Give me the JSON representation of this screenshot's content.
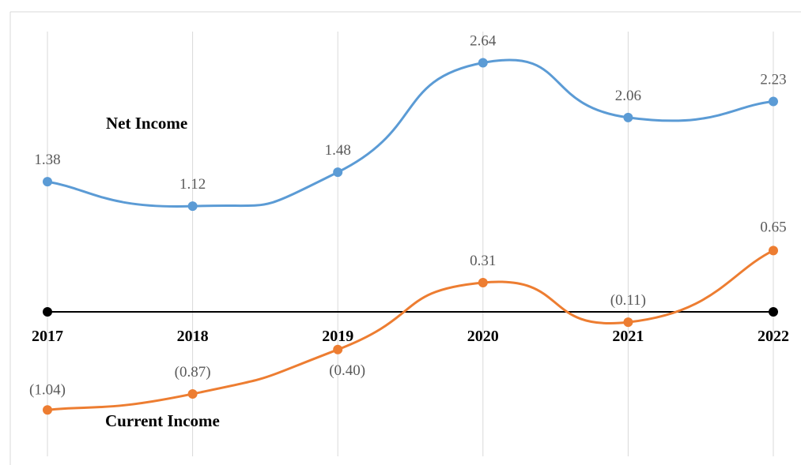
{
  "chart_data": {
    "type": "line",
    "categories": [
      "2017",
      "2018",
      "2019",
      "2020",
      "2021",
      "2022"
    ],
    "series": [
      {
        "name": "Net Income",
        "values": [
          1.38,
          1.12,
          1.48,
          2.64,
          2.06,
          2.23
        ],
        "labels": [
          "1.38",
          "1.12",
          "1.48",
          "2.64",
          "2.06",
          "2.23"
        ],
        "color": "#5B9BD5"
      },
      {
        "name": "Current Income",
        "values": [
          -1.04,
          -0.87,
          -0.4,
          0.31,
          -0.11,
          0.65
        ],
        "labels": [
          "(1.04)",
          "(0.87)",
          "(0.40)",
          "0.31",
          "(0.11)",
          "0.65"
        ],
        "color": "#ED7D31"
      }
    ],
    "smooth": true,
    "grid": "vertical",
    "zero_line_color": "#000000",
    "gridline_color": "#D9D9D9"
  }
}
